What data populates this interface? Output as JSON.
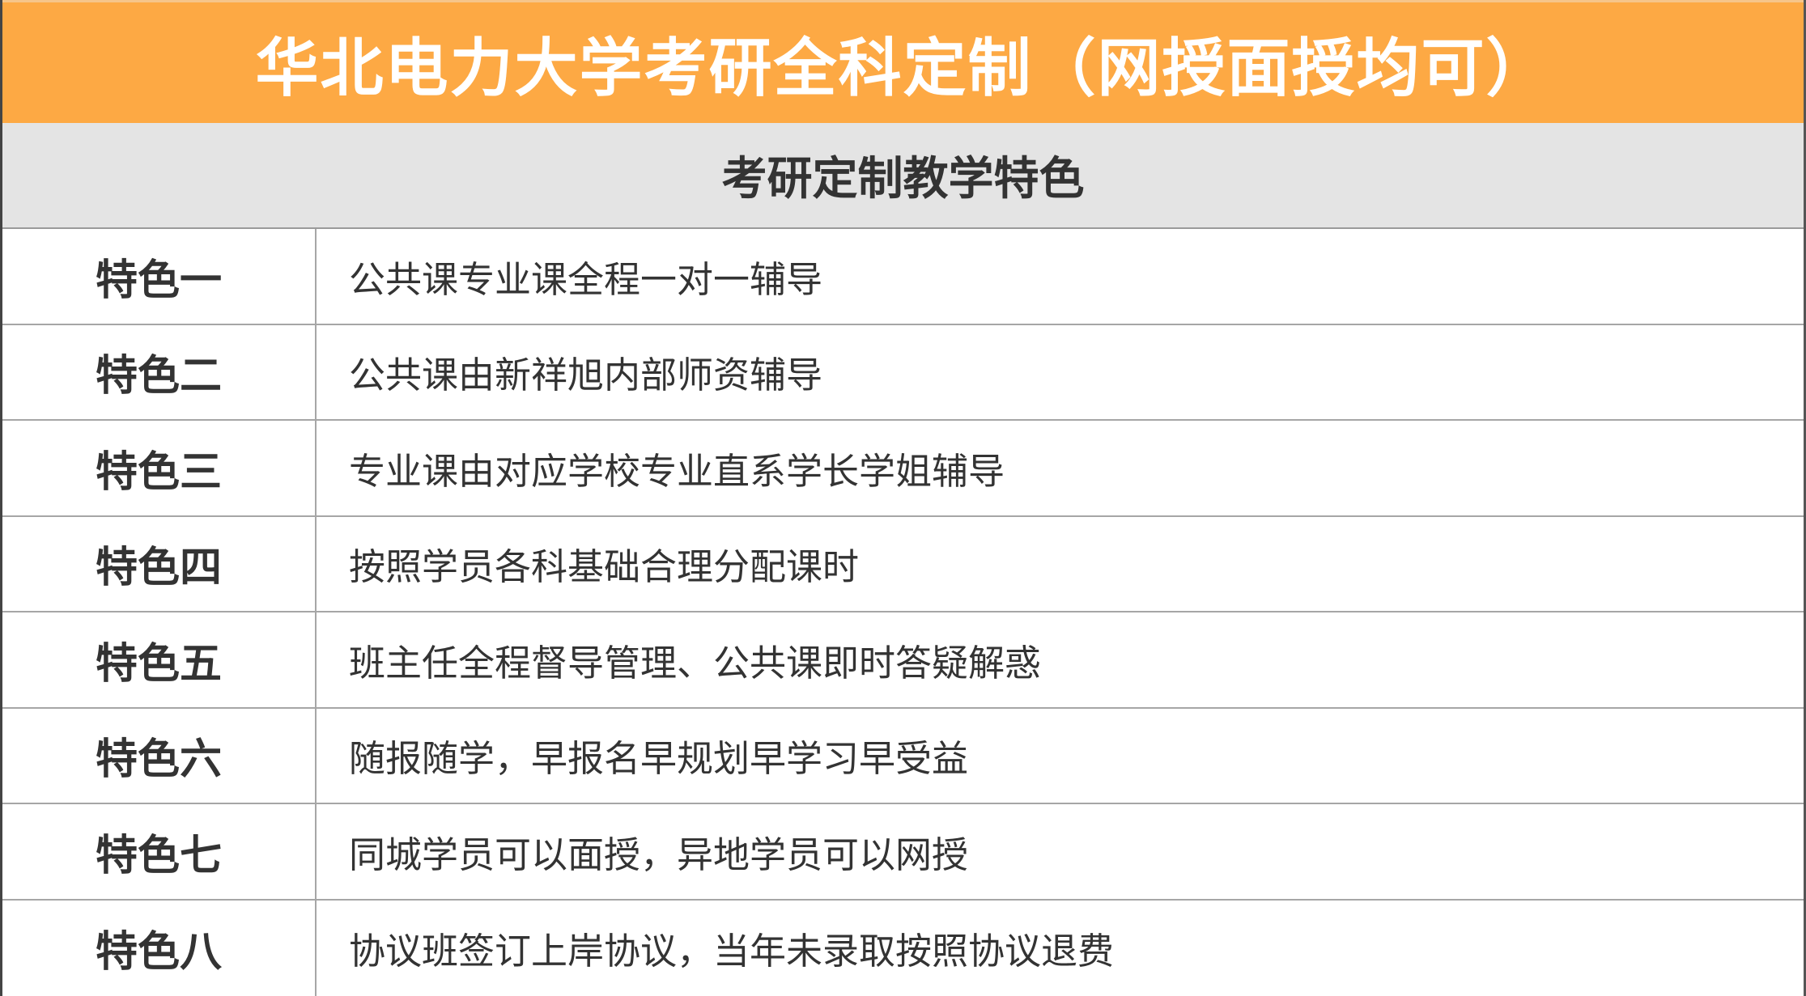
{
  "title": "华北电力大学考研全科定制（网授面授均可）",
  "subtitle": "考研定制教学特色",
  "colors": {
    "header_bg": "#FDA944",
    "subheader_bg": "#E4E4E4",
    "text": "#333333"
  },
  "rows": [
    {
      "label": "特色一",
      "content": "公共课专业课全程一对一辅导"
    },
    {
      "label": "特色二",
      "content": "公共课由新祥旭内部师资辅导"
    },
    {
      "label": "特色三",
      "content": "专业课由对应学校专业直系学长学姐辅导"
    },
    {
      "label": "特色四",
      "content": "按照学员各科基础合理分配课时"
    },
    {
      "label": "特色五",
      "content": "班主任全程督导管理、公共课即时答疑解惑"
    },
    {
      "label": "特色六",
      "content": "随报随学，早报名早规划早学习早受益"
    },
    {
      "label": "特色七",
      "content": "同城学员可以面授，异地学员可以网授"
    },
    {
      "label": "特色八",
      "content": "协议班签订上岸协议，当年未录取按照协议退费"
    }
  ]
}
